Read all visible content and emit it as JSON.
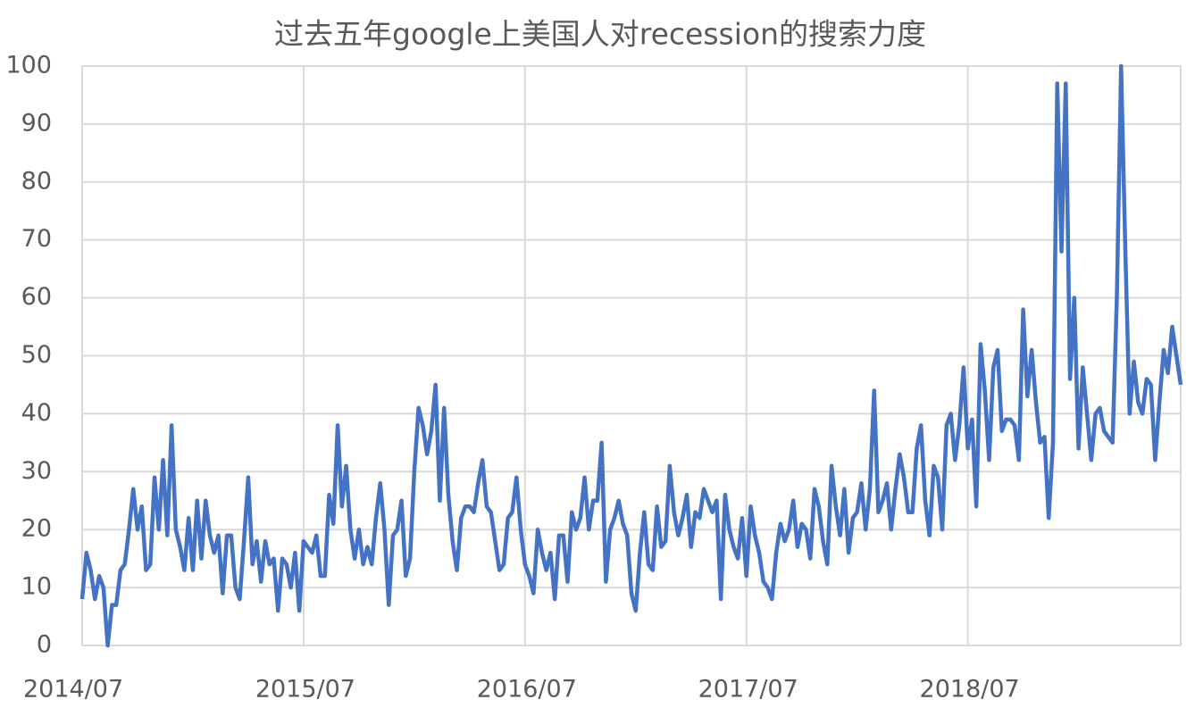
{
  "chart_data": {
    "type": "line",
    "title": "过去五年google上美国人对recession的搜索力度",
    "categories": [
      "2014/07",
      null,
      null,
      null,
      null,
      null,
      null,
      null,
      null,
      null,
      null,
      null,
      null,
      null,
      null,
      null,
      null,
      null,
      null,
      null,
      null,
      null,
      null,
      null,
      null,
      null,
      null,
      null,
      null,
      null,
      null,
      null,
      null,
      null,
      null,
      null,
      null,
      null,
      null,
      null,
      null,
      null,
      null,
      null,
      null,
      null,
      null,
      null,
      null,
      null,
      null,
      null,
      "2015/07",
      null,
      null,
      null,
      null,
      null,
      null,
      null,
      null,
      null,
      null,
      null,
      null,
      null,
      null,
      null,
      null,
      null,
      null,
      null,
      null,
      null,
      null,
      null,
      null,
      null,
      null,
      null,
      null,
      null,
      null,
      null,
      null,
      null,
      null,
      null,
      null,
      null,
      null,
      null,
      null,
      null,
      null,
      null,
      null,
      null,
      null,
      null,
      null,
      null,
      null,
      null,
      "2016/07",
      null,
      null,
      null,
      null,
      null,
      null,
      null,
      null,
      null,
      null,
      null,
      null,
      null,
      null,
      null,
      null,
      null,
      null,
      null,
      null,
      null,
      null,
      null,
      null,
      null,
      null,
      null,
      null,
      null,
      null,
      null,
      null,
      null,
      null,
      null,
      null,
      null,
      null,
      null,
      null,
      null,
      null,
      null,
      null,
      null,
      null,
      null,
      null,
      null,
      null,
      null,
      "2017/07",
      null,
      null,
      null,
      null,
      null,
      null,
      null,
      null,
      null,
      null,
      null,
      null,
      null,
      null,
      null,
      null,
      null,
      null,
      null,
      null,
      null,
      null,
      null,
      null,
      null,
      null,
      null,
      null,
      null,
      null,
      null,
      null,
      null,
      null,
      null,
      null,
      null,
      null,
      null,
      null,
      null,
      null,
      null,
      null,
      null,
      null,
      null,
      null,
      null,
      null,
      null,
      "2018/07",
      null,
      null,
      null,
      null,
      null,
      null,
      null,
      null,
      null,
      null,
      null,
      null,
      null,
      null,
      null,
      null,
      null,
      null,
      null,
      null,
      null,
      null,
      null,
      null,
      null,
      null,
      null,
      null,
      null,
      null,
      null,
      null,
      null,
      null,
      null,
      null,
      null,
      null,
      null,
      null,
      null,
      null,
      null,
      null,
      null,
      null,
      null,
      null,
      null,
      null
    ],
    "series": [
      {
        "name": "recession",
        "color": "#4472c4",
        "values": [
          8,
          16,
          13,
          8,
          12,
          10,
          0,
          7,
          7,
          13,
          14,
          20,
          27,
          20,
          24,
          13,
          14,
          29,
          20,
          32,
          19,
          38,
          20,
          17,
          13,
          22,
          13,
          25,
          15,
          25,
          19,
          16,
          19,
          9,
          19,
          19,
          10,
          8,
          18,
          29,
          14,
          18,
          11,
          18,
          14,
          15,
          6,
          15,
          14,
          10,
          16,
          6,
          18,
          17,
          16,
          19,
          12,
          12,
          26,
          21,
          38,
          24,
          31,
          20,
          15,
          20,
          14,
          17,
          14,
          22,
          28,
          20,
          7,
          19,
          20,
          25,
          12,
          15,
          30,
          41,
          38,
          33,
          37,
          45,
          25,
          41,
          26,
          18,
          13,
          22,
          24,
          24,
          23,
          28,
          32,
          24,
          23,
          18,
          13,
          14,
          22,
          23,
          29,
          20,
          14,
          12,
          9,
          20,
          16,
          13,
          16,
          8,
          19,
          19,
          11,
          23,
          20,
          22,
          29,
          20,
          25,
          25,
          35,
          11,
          20,
          22,
          25,
          21,
          19,
          9,
          6,
          16,
          23,
          14,
          13,
          24,
          17,
          18,
          31,
          23,
          19,
          22,
          26,
          17,
          23,
          22,
          27,
          25,
          23,
          25,
          8,
          26,
          20,
          17,
          15,
          22,
          12,
          24,
          19,
          16,
          11,
          10,
          8,
          16,
          21,
          18,
          20,
          25,
          17,
          21,
          20,
          15,
          27,
          24,
          18,
          14,
          31,
          24,
          19,
          27,
          16,
          22,
          23,
          28,
          20,
          27,
          44,
          23,
          25,
          28,
          20,
          27,
          33,
          29,
          23,
          23,
          34,
          38,
          25,
          19,
          31,
          29,
          20,
          38,
          40,
          32,
          38,
          48,
          34,
          39,
          24,
          52,
          44,
          32,
          48,
          51,
          37,
          39,
          39,
          38,
          32,
          58,
          43,
          51,
          42,
          35,
          36,
          22,
          35,
          97,
          68,
          97,
          46,
          60,
          34,
          48,
          40,
          32,
          40,
          41,
          37,
          36,
          35,
          60,
          100,
          68,
          40,
          49,
          42,
          40,
          46,
          45,
          32,
          42,
          51,
          47,
          55,
          50,
          45
        ]
      }
    ],
    "ylim": [
      0,
      100
    ],
    "yticks": [
      0,
      10,
      20,
      30,
      40,
      50,
      60,
      70,
      80,
      90,
      100
    ],
    "grid": true
  }
}
